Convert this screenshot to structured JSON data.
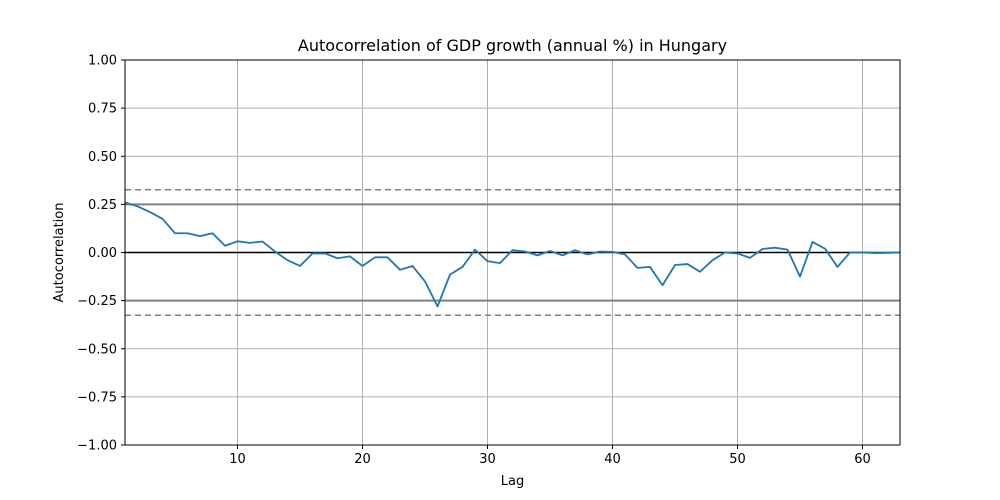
{
  "chart_data": {
    "type": "line",
    "title": "Autocorrelation of GDP growth (annual %) in Hungary",
    "xlabel": "Lag",
    "ylabel": "Autocorrelation",
    "xlim": [
      1,
      63
    ],
    "ylim": [
      -1.0,
      1.0
    ],
    "grid": true,
    "xticks": [
      10,
      20,
      30,
      40,
      50,
      60
    ],
    "xtick_labels": [
      "10",
      "20",
      "30",
      "40",
      "50",
      "60"
    ],
    "yticks": [
      -1.0,
      -0.75,
      -0.5,
      -0.25,
      0.0,
      0.25,
      0.5,
      0.75,
      1.0
    ],
    "ytick_labels": [
      "−1.00",
      "−0.75",
      "−0.50",
      "−0.25",
      "0.00",
      "0.25",
      "0.50",
      "0.75",
      "1.00"
    ],
    "reference_lines": {
      "zero": 0.0,
      "solid_bounds": [
        0.25,
        -0.25
      ],
      "dashed_bounds": [
        0.326,
        -0.326
      ]
    },
    "series": [
      {
        "color": "#1f77b4",
        "x": [
          1,
          2,
          3,
          4,
          5,
          6,
          7,
          8,
          9,
          10,
          11,
          12,
          13,
          14,
          15,
          16,
          17,
          18,
          19,
          20,
          21,
          22,
          23,
          24,
          25,
          26,
          27,
          28,
          29,
          30,
          31,
          32,
          33,
          34,
          35,
          36,
          37,
          38,
          39,
          40,
          41,
          42,
          43,
          44,
          45,
          46,
          47,
          48,
          49,
          50,
          51,
          52,
          53,
          54,
          55,
          56,
          57,
          58,
          59,
          60,
          61,
          62,
          63
        ],
        "values": [
          0.26,
          0.24,
          0.21,
          0.175,
          0.1,
          0.1,
          0.085,
          0.1,
          0.035,
          0.058,
          0.05,
          0.057,
          0.005,
          -0.04,
          -0.07,
          -0.005,
          -0.005,
          -0.03,
          -0.02,
          -0.07,
          -0.025,
          -0.025,
          -0.09,
          -0.07,
          -0.15,
          -0.28,
          -0.115,
          -0.075,
          0.015,
          -0.045,
          -0.055,
          0.012,
          0.005,
          -0.015,
          0.008,
          -0.015,
          0.012,
          -0.01,
          0.005,
          0.003,
          -0.01,
          -0.08,
          -0.075,
          -0.17,
          -0.065,
          -0.06,
          -0.1,
          -0.04,
          0.0,
          -0.005,
          -0.028,
          0.018,
          0.025,
          0.015,
          -0.125,
          0.055,
          0.02,
          -0.075,
          0.0,
          0.0,
          -0.003,
          -0.002,
          0.0
        ]
      }
    ]
  }
}
